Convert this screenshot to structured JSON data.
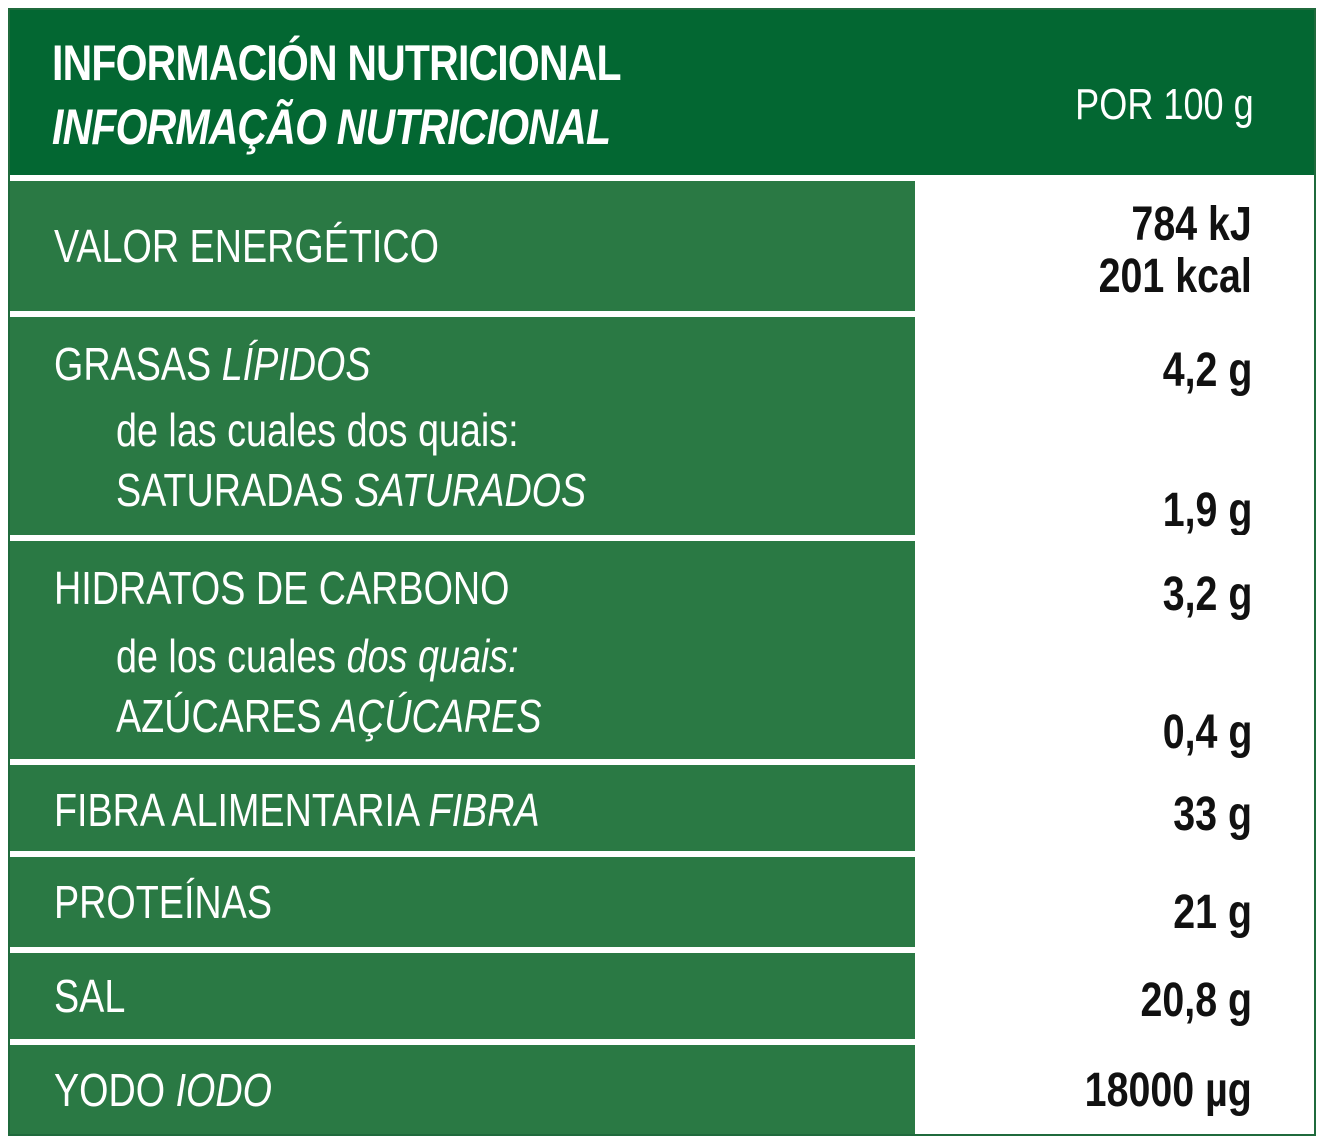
{
  "header": {
    "title_es": "INFORMACIÓN NUTRICIONAL",
    "title_pt": "INFORMAÇÃO NUTRICIONAL",
    "per": "POR 100 g"
  },
  "rows": {
    "energy": {
      "label": "VALOR ENERGÉTICO",
      "value_kj": "784 kJ",
      "value_kcal": "201 kcal"
    },
    "fat": {
      "label": "GRASAS",
      "label_pt": "LÍPIDOS",
      "value": "4,2 g",
      "sub_intro": "de las cuales dos quais:",
      "sub_label": "SATURADAS",
      "sub_label_pt": "SATURADOS",
      "sub_value": "1,9 g"
    },
    "carbs": {
      "label": "HIDRATOS DE CARBONO",
      "value": "3,2 g",
      "sub_intro": "de los cuales",
      "sub_intro_pt": "dos quais:",
      "sub_label": "AZÚCARES",
      "sub_label_pt": "AÇÚCARES",
      "sub_value": "0,4 g"
    },
    "fiber": {
      "label": "FIBRA ALIMENTARIA",
      "label_pt": "FIBRA",
      "value": "33 g"
    },
    "protein": {
      "label": "PROTEÍNAS",
      "value": "21 g"
    },
    "salt": {
      "label": "SAL",
      "value": "20,8 g"
    },
    "iodine": {
      "label": "YODO",
      "label_pt": "IODO",
      "value": "18000 µg"
    }
  },
  "colors": {
    "header_bg": "#036732",
    "label_bg": "#2a7944",
    "value_bg": "#ffffff"
  }
}
